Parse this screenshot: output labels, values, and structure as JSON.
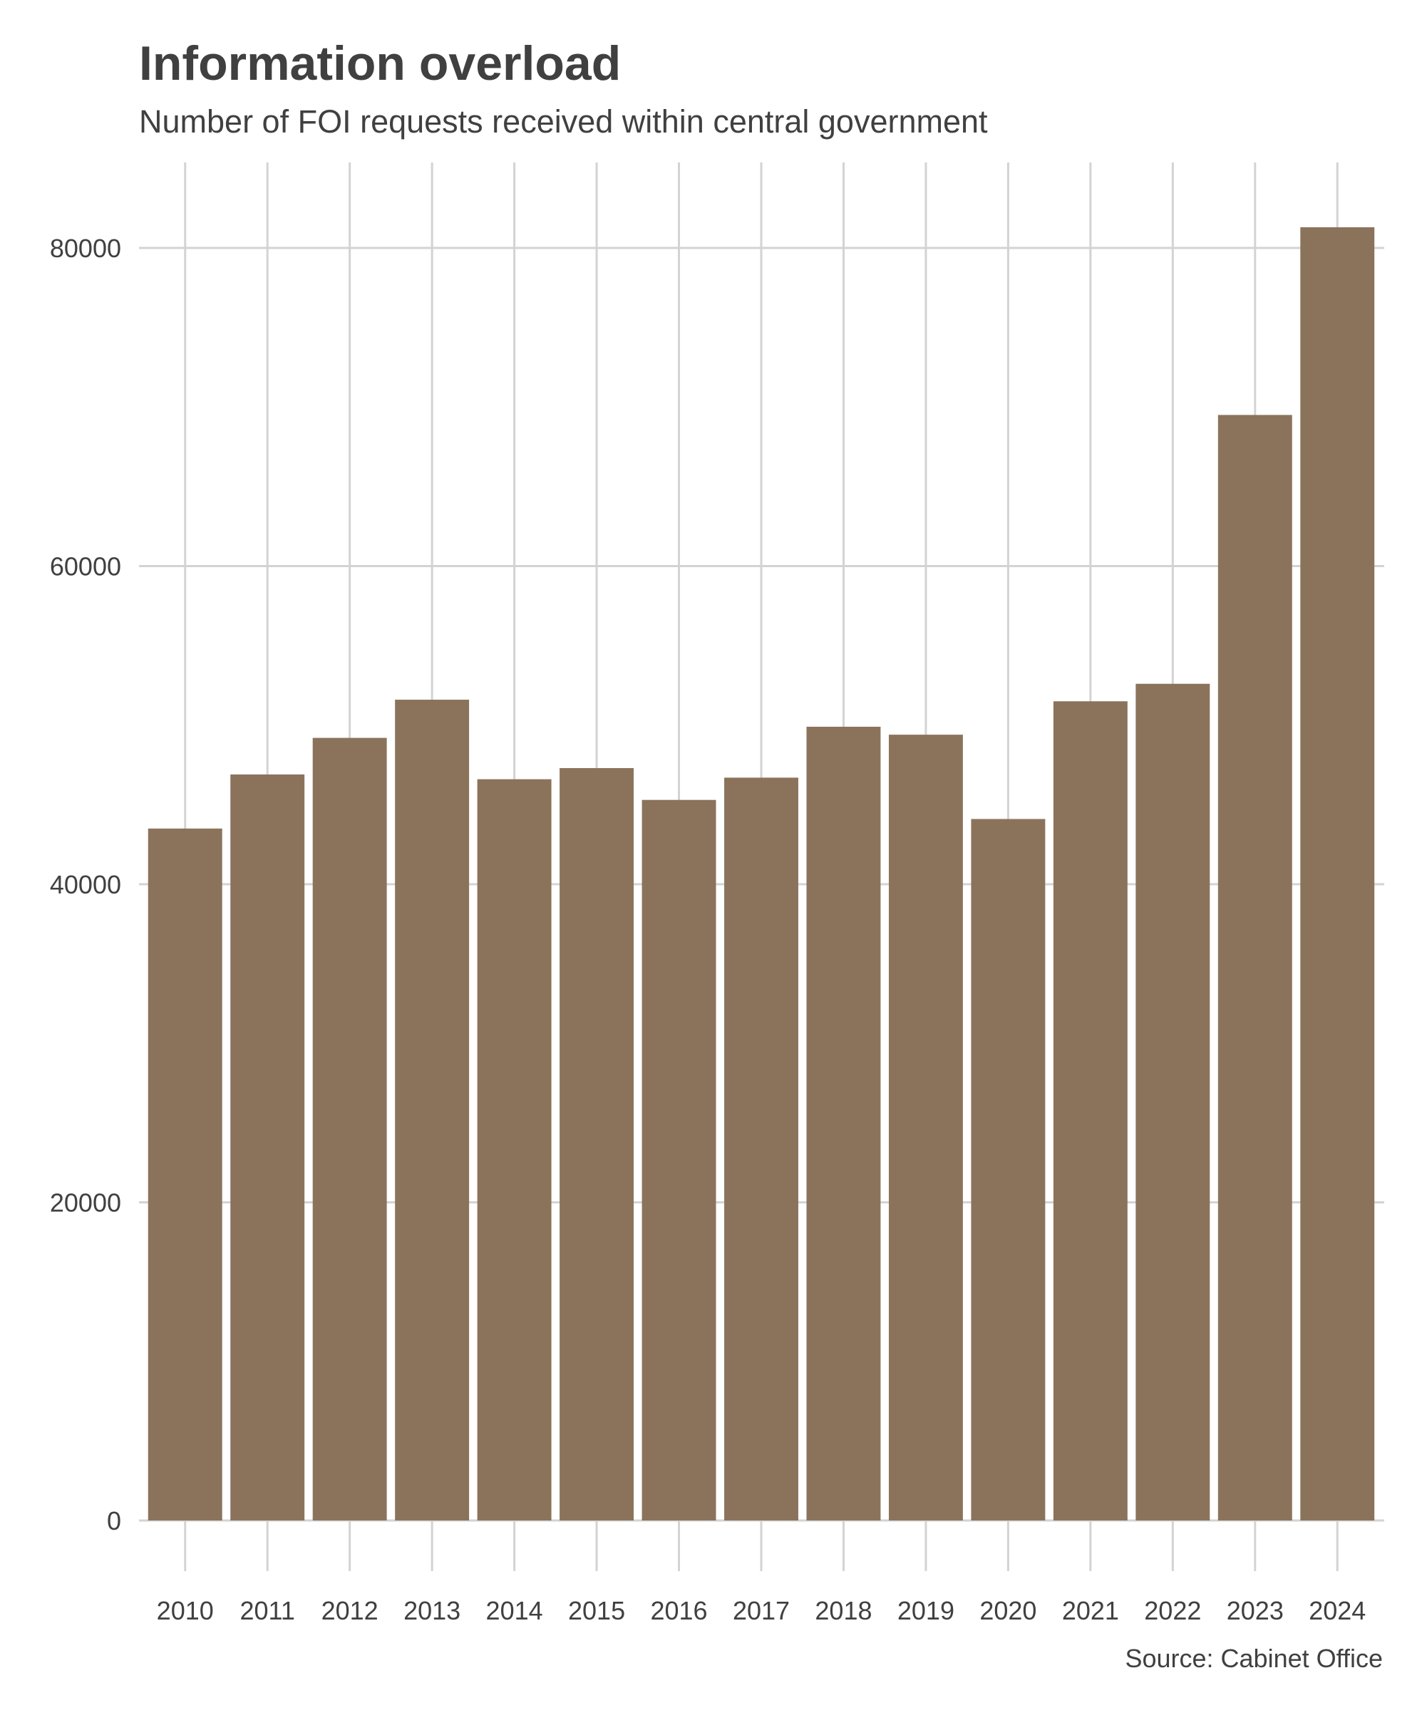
{
  "chart_data": {
    "type": "bar",
    "title": "Information overload",
    "subtitle": "Number of FOI requests received within central government",
    "caption": "Source: Cabinet Office",
    "xlabel": "",
    "ylabel": "",
    "categories": [
      "2010",
      "2011",
      "2012",
      "2013",
      "2014",
      "2015",
      "2016",
      "2017",
      "2018",
      "2019",
      "2020",
      "2021",
      "2022",
      "2023",
      "2024"
    ],
    "values": [
      43500,
      46900,
      49200,
      51600,
      46600,
      47300,
      45300,
      46700,
      49900,
      49400,
      44100,
      51500,
      52600,
      69500,
      81300
    ],
    "ylim": [
      0,
      84000
    ],
    "yticks": [
      0,
      20000,
      40000,
      60000,
      80000
    ],
    "ytick_labels": [
      "0",
      "20000",
      "40000",
      "60000",
      "80000"
    ],
    "bar_color": "#8b735b",
    "grid": true,
    "legend": "none"
  }
}
